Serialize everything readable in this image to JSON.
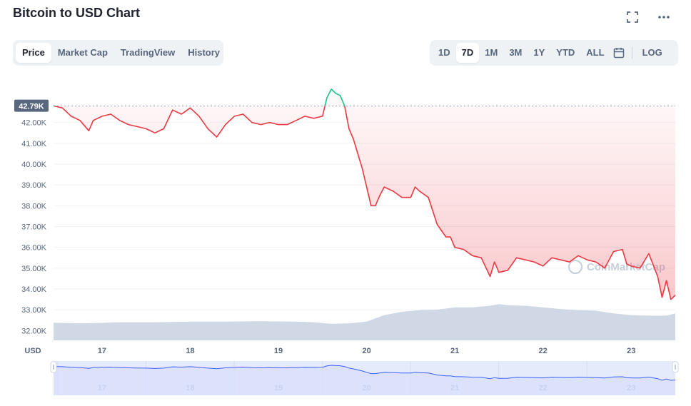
{
  "title": "Bitcoin to USD Chart",
  "icons": {
    "fullscreen": "fullscreen-icon",
    "more": "more-horizontal-icon",
    "calendar": "calendar-icon"
  },
  "view_tabs": [
    {
      "label": "Price",
      "active": true
    },
    {
      "label": "Market Cap",
      "active": false
    },
    {
      "label": "TradingView",
      "active": false
    },
    {
      "label": "History",
      "active": false
    }
  ],
  "range_tabs": [
    {
      "label": "1D",
      "active": false
    },
    {
      "label": "7D",
      "active": true
    },
    {
      "label": "1M",
      "active": false
    },
    {
      "label": "3M",
      "active": false
    },
    {
      "label": "1Y",
      "active": false
    },
    {
      "label": "YTD",
      "active": false
    },
    {
      "label": "ALL",
      "active": false
    }
  ],
  "log_label": "LOG",
  "watermark": "CoinMarketCap",
  "colors": {
    "up": "#16c784",
    "down": "#ea3943",
    "volume": "#cfd6e4",
    "navigator": "#e6ebfc",
    "navigator_line": "#3861fb"
  },
  "chart_data": {
    "type": "line",
    "title": "Bitcoin to USD Chart",
    "xlabel": "",
    "ylabel": "USD",
    "current_label": "42.79K",
    "reference_value": 42790,
    "ylim": [
      31600,
      43600
    ],
    "y_ticks": [
      {
        "label": "42.00K",
        "value": 42000
      },
      {
        "label": "41.00K",
        "value": 41000
      },
      {
        "label": "40.00K",
        "value": 40000
      },
      {
        "label": "39.00K",
        "value": 39000
      },
      {
        "label": "38.00K",
        "value": 38000
      },
      {
        "label": "37.00K",
        "value": 37000
      },
      {
        "label": "36.00K",
        "value": 36000
      },
      {
        "label": "35.00K",
        "value": 35000
      },
      {
        "label": "34.00K",
        "value": 34000
      },
      {
        "label": "33.00K",
        "value": 33000
      },
      {
        "label": "32.00K",
        "value": 32000
      }
    ],
    "x_ticks": [
      {
        "label": "17",
        "value": 17
      },
      {
        "label": "18",
        "value": 18
      },
      {
        "label": "19",
        "value": 19
      },
      {
        "label": "20",
        "value": 20
      },
      {
        "label": "21",
        "value": 21
      },
      {
        "label": "22",
        "value": 22
      },
      {
        "label": "23",
        "value": 23
      }
    ],
    "xlim": [
      16.45,
      23.5
    ],
    "series": [
      {
        "x": [
          16.45,
          16.55,
          16.65,
          16.75,
          16.85,
          16.9,
          17.0,
          17.1,
          17.2,
          17.3,
          17.4,
          17.5,
          17.6,
          17.7,
          17.8,
          17.9,
          18.0,
          18.1,
          18.2,
          18.3,
          18.4,
          18.5,
          18.6,
          18.7,
          18.8,
          18.9,
          19.0,
          19.1,
          19.2,
          19.3,
          19.4,
          19.5,
          19.55,
          19.6,
          19.65,
          19.7,
          19.75,
          19.8,
          19.85,
          19.9,
          19.95,
          20.0,
          20.05,
          20.1,
          20.15,
          20.2,
          20.3,
          20.4,
          20.5,
          20.55,
          20.6,
          20.7,
          20.8,
          20.9,
          20.95,
          21.0,
          21.1,
          21.2,
          21.3,
          21.4,
          21.45,
          21.5,
          21.6,
          21.7,
          21.8,
          21.9,
          22.0,
          22.1,
          22.2,
          22.3,
          22.4,
          22.5,
          22.6,
          22.7,
          22.8,
          22.9,
          22.95,
          23.0,
          23.1,
          23.2,
          23.3,
          23.35,
          23.4,
          23.45,
          23.5
        ],
        "values": [
          42800,
          42700,
          42300,
          42100,
          41600,
          42100,
          42300,
          42400,
          42100,
          41900,
          41800,
          41700,
          41500,
          41700,
          42600,
          42400,
          42700,
          42300,
          41700,
          41300,
          41900,
          42300,
          42400,
          42000,
          41900,
          42000,
          41900,
          41900,
          42100,
          42300,
          42200,
          42300,
          43200,
          43600,
          43400,
          43300,
          42800,
          41700,
          41200,
          40500,
          39800,
          38900,
          38000,
          38000,
          38500,
          38900,
          38700,
          38400,
          38400,
          38900,
          38700,
          38400,
          37100,
          36500,
          36500,
          36000,
          35900,
          35600,
          35500,
          34600,
          35300,
          34800,
          34900,
          35500,
          35400,
          35300,
          35100,
          35500,
          35400,
          35300,
          35600,
          35400,
          35300,
          35000,
          35800,
          35900,
          35200,
          35100,
          35000,
          35700,
          34600,
          33600,
          34400,
          33500,
          33700
        ]
      }
    ],
    "volume": {
      "x": [
        16.45,
        16.8,
        17.2,
        17.6,
        18.0,
        18.4,
        18.8,
        19.2,
        19.4,
        19.6,
        19.8,
        20.0,
        20.2,
        20.4,
        20.6,
        20.8,
        21.0,
        21.2,
        21.4,
        21.5,
        21.6,
        21.8,
        22.0,
        22.2,
        22.4,
        22.6,
        22.8,
        23.0,
        23.2,
        23.4,
        23.5
      ],
      "values": [
        0.32,
        0.31,
        0.33,
        0.33,
        0.34,
        0.34,
        0.35,
        0.34,
        0.33,
        0.3,
        0.31,
        0.34,
        0.46,
        0.52,
        0.55,
        0.56,
        0.6,
        0.6,
        0.63,
        0.66,
        0.64,
        0.63,
        0.6,
        0.57,
        0.55,
        0.54,
        0.49,
        0.46,
        0.45,
        0.45,
        0.49
      ]
    }
  }
}
